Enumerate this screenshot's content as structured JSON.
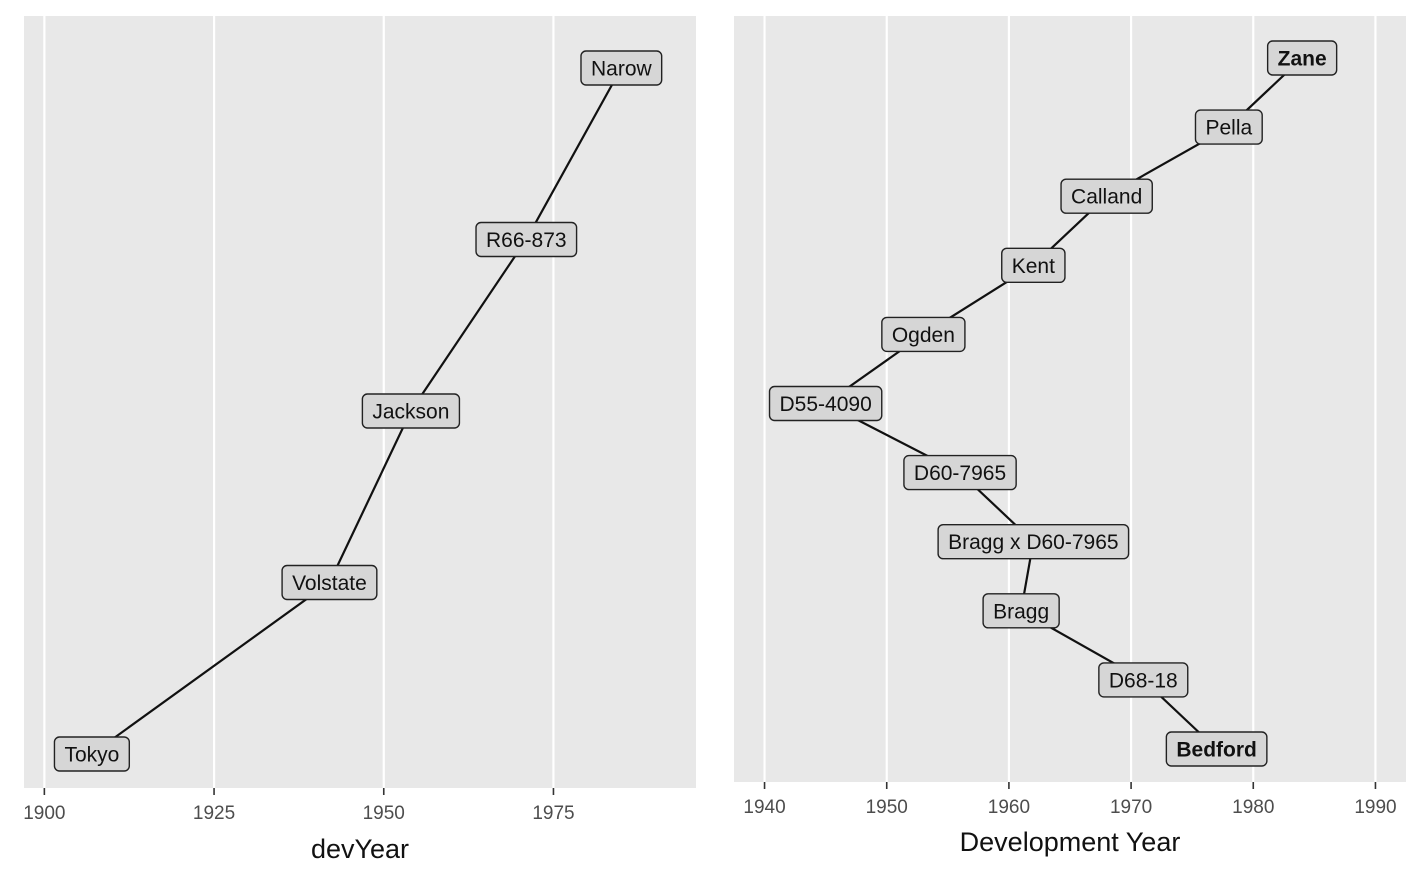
{
  "chart_data": [
    {
      "type": "line",
      "xlabel": "devYear",
      "ylabel": "",
      "xlim": [
        1897,
        1996
      ],
      "x_ticks": [
        1900,
        1925,
        1950,
        1975
      ],
      "grid": true,
      "legend": "none",
      "points": [
        {
          "label": "Tokyo",
          "x": 1907,
          "bold": false
        },
        {
          "label": "Volstate",
          "x": 1942,
          "bold": false
        },
        {
          "label": "Jackson",
          "x": 1954,
          "bold": false
        },
        {
          "label": "R66-873",
          "x": 1971,
          "bold": false
        },
        {
          "label": "Narow",
          "x": 1985,
          "bold": false
        }
      ]
    },
    {
      "type": "line",
      "xlabel": "Development Year",
      "ylabel": "",
      "xlim": [
        1937.5,
        1992.5
      ],
      "x_ticks": [
        1940,
        1950,
        1960,
        1970,
        1980,
        1990
      ],
      "grid": true,
      "legend": "none",
      "points": [
        {
          "label": "Bedford",
          "x": 1977,
          "bold": true
        },
        {
          "label": "D68-18",
          "x": 1971,
          "bold": false
        },
        {
          "label": "Bragg",
          "x": 1961,
          "bold": false
        },
        {
          "label": "Bragg x D60-7965",
          "x": 1962,
          "bold": false
        },
        {
          "label": "D60-7965",
          "x": 1956,
          "bold": false
        },
        {
          "label": "D55-4090",
          "x": 1945,
          "bold": false
        },
        {
          "label": "Ogden",
          "x": 1953,
          "bold": false
        },
        {
          "label": "Kent",
          "x": 1962,
          "bold": false
        },
        {
          "label": "Calland",
          "x": 1968,
          "bold": false
        },
        {
          "label": "Pella",
          "x": 1978,
          "bold": false
        },
        {
          "label": "Zane",
          "x": 1984,
          "bold": true
        }
      ]
    }
  ]
}
